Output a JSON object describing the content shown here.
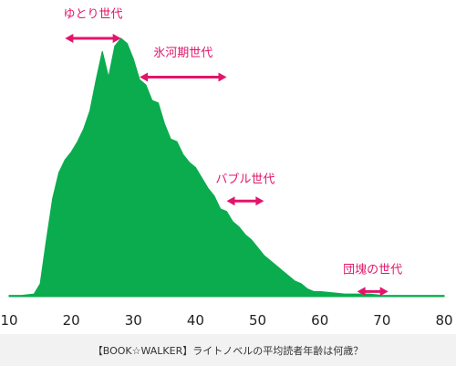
{
  "colors": {
    "area_fill": "#0aac4e",
    "annotation": "#e2156b",
    "axis_text": "#222222",
    "caption_bg": "#f2f2f2"
  },
  "caption": "【BOOK☆WALKER】ライトノベルの平均読者年齢は何歳？",
  "chart_data": {
    "type": "area",
    "title": "",
    "xlabel": "",
    "ylabel": "",
    "xlim": [
      10,
      80
    ],
    "ylim": [
      0,
      100
    ],
    "x_ticks": [
      10,
      20,
      30,
      40,
      50,
      60,
      70,
      80
    ],
    "y_ticks_shown": false,
    "grid": false,
    "legend": "none",
    "x": [
      10,
      12,
      14,
      15,
      16,
      17,
      18,
      19,
      20,
      21,
      22,
      23,
      24,
      25,
      26,
      27,
      28,
      29,
      30,
      31,
      32,
      33,
      34,
      35,
      36,
      37,
      38,
      39,
      40,
      41,
      42,
      43,
      44,
      45,
      46,
      47,
      48,
      49,
      50,
      51,
      52,
      53,
      54,
      55,
      56,
      57,
      58,
      59,
      60,
      62,
      64,
      66,
      68,
      70,
      72,
      74,
      76,
      78,
      80
    ],
    "values": [
      0.5,
      0.5,
      1,
      5,
      22,
      38,
      48,
      53,
      56,
      60,
      65,
      72,
      84,
      95,
      85,
      97,
      100,
      98,
      92,
      84,
      82,
      76,
      75,
      67,
      61,
      60,
      55,
      52,
      50,
      46,
      42,
      39,
      34,
      33,
      29,
      27,
      24,
      22,
      19,
      16,
      14,
      12,
      10,
      8,
      6,
      5,
      3,
      2,
      2,
      1.5,
      1,
      1,
      1,
      0.5,
      0.5,
      0.5,
      0.5,
      0.5,
      0.5
    ],
    "annotations": [
      {
        "label": "ゆとり世代",
        "x_start": 19,
        "x_end": 28,
        "label_y": 108,
        "arrow_y": 100
      },
      {
        "label": "氷河期世代",
        "x_start": 31,
        "x_end": 45,
        "label_y": 93,
        "arrow_y": 85
      },
      {
        "label": "バブル世代",
        "x_start": 45,
        "x_end": 51,
        "label_y": 44,
        "arrow_y": 37
      },
      {
        "label": "団塊の世代",
        "x_start": 66,
        "x_end": 71,
        "label_y": 9,
        "arrow_y": 2
      }
    ]
  }
}
